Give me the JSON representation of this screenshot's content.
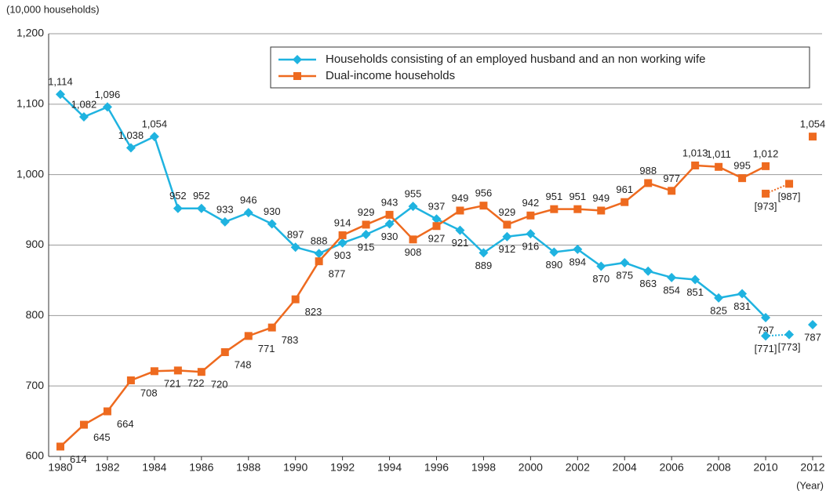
{
  "chart_data": {
    "type": "line",
    "y_axis_label": "(10,000 households)",
    "x_axis_label": "(Year)",
    "x": [
      1980,
      1981,
      1982,
      1983,
      1984,
      1985,
      1986,
      1987,
      1988,
      1989,
      1990,
      1991,
      1992,
      1993,
      1994,
      1995,
      1996,
      1997,
      1998,
      1999,
      2000,
      2001,
      2002,
      2003,
      2004,
      2005,
      2006,
      2007,
      2008,
      2009,
      2010,
      2011,
      2012
    ],
    "xlim": [
      1979.5,
      2012.4
    ],
    "xticks": [
      1980,
      1982,
      1984,
      1986,
      1988,
      1990,
      1992,
      1994,
      1996,
      1998,
      2000,
      2002,
      2004,
      2006,
      2008,
      2010,
      2012
    ],
    "ylim": [
      600,
      1200
    ],
    "yticks": [
      600,
      700,
      800,
      900,
      {
        "value": 1000,
        "label": "1,000"
      },
      {
        "value": 1100,
        "label": "1,100"
      },
      {
        "value": 1200,
        "label": "1,200"
      }
    ],
    "grid": true,
    "legend": "top-right",
    "series": [
      {
        "name": "Households consisting of an employed husband and an non working wife",
        "color": "#1fb3e0",
        "marker": "diamond",
        "line_style": "solid",
        "values": [
          1114,
          1082,
          1096,
          1038,
          1054,
          952,
          952,
          933,
          946,
          930,
          897,
          888,
          903,
          915,
          930,
          955,
          937,
          921,
          889,
          912,
          916,
          890,
          894,
          870,
          875,
          863,
          854,
          851,
          825,
          831,
          797,
          null,
          787
        ],
        "value_labels": [
          "1,114",
          "1,082",
          "1,096",
          "1,038",
          "1,054",
          "952",
          "952",
          "933",
          "946",
          "930",
          "897",
          "888",
          "903",
          "915",
          "930",
          "955",
          "937",
          "921",
          "889",
          "912",
          "916",
          "890",
          "894",
          "870",
          "875",
          "863",
          "854",
          "851",
          "825",
          "831",
          "797",
          null,
          "787"
        ]
      },
      {
        "name": "Dual-income households",
        "color": "#ee6a1f",
        "marker": "square",
        "line_style": "solid",
        "values": [
          614,
          645,
          664,
          708,
          721,
          722,
          720,
          748,
          771,
          783,
          823,
          877,
          914,
          929,
          943,
          908,
          927,
          949,
          956,
          929,
          942,
          951,
          951,
          949,
          961,
          988,
          977,
          1013,
          1011,
          995,
          1012,
          null,
          1054
        ],
        "value_labels": [
          "614",
          "645",
          "664",
          "708",
          "721",
          "722",
          "720",
          "748",
          "771",
          "783",
          "823",
          "877",
          "914",
          "929",
          "943",
          "908",
          "927",
          "949",
          "956",
          "929",
          "942",
          "951",
          "951",
          "949",
          "961",
          "988",
          "977",
          "1,013",
          "1,011",
          "995",
          "1,012",
          null,
          "1,054"
        ]
      },
      {
        "color": "#1fb3e0",
        "marker": "diamond",
        "line_style": "dotted",
        "values": [
          null,
          null,
          null,
          null,
          null,
          null,
          null,
          null,
          null,
          null,
          null,
          null,
          null,
          null,
          null,
          null,
          null,
          null,
          null,
          null,
          null,
          null,
          null,
          null,
          null,
          null,
          null,
          null,
          null,
          null,
          771,
          773,
          null
        ],
        "value_labels": [
          null,
          null,
          null,
          null,
          null,
          null,
          null,
          null,
          null,
          null,
          null,
          null,
          null,
          null,
          null,
          null,
          null,
          null,
          null,
          null,
          null,
          null,
          null,
          null,
          null,
          null,
          null,
          null,
          null,
          null,
          "[771]",
          "[773]",
          null
        ]
      },
      {
        "color": "#ee6a1f",
        "marker": "square",
        "line_style": "dotted",
        "values": [
          null,
          null,
          null,
          null,
          null,
          null,
          null,
          null,
          null,
          null,
          null,
          null,
          null,
          null,
          null,
          null,
          null,
          null,
          null,
          null,
          null,
          null,
          null,
          null,
          null,
          null,
          null,
          null,
          null,
          null,
          973,
          987,
          null
        ],
        "value_labels": [
          null,
          null,
          null,
          null,
          null,
          null,
          null,
          null,
          null,
          null,
          null,
          null,
          null,
          null,
          null,
          null,
          null,
          null,
          null,
          null,
          null,
          null,
          null,
          null,
          null,
          null,
          null,
          null,
          null,
          null,
          "[973]",
          "[987]",
          null
        ]
      }
    ]
  }
}
